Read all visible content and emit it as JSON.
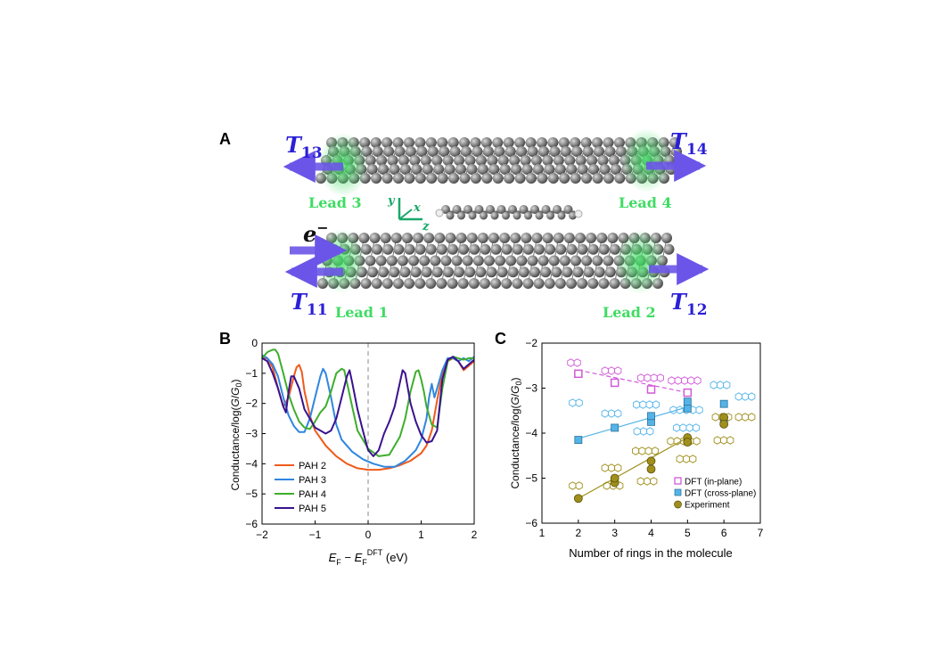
{
  "panels": {
    "a": {
      "label": "A",
      "leads": [
        "Lead 1",
        "Lead 2",
        "Lead 3",
        "Lead 4"
      ],
      "transmissions": [
        {
          "base": "T",
          "sub": "13"
        },
        {
          "base": "T",
          "sub": "14"
        },
        {
          "base": "T",
          "sub": "11"
        },
        {
          "base": "T",
          "sub": "12"
        }
      ],
      "electron": {
        "base": "e",
        "sup": "−"
      },
      "axes_labels": {
        "y": "y",
        "x": "x",
        "z": "z"
      },
      "colors": {
        "lead": "#3fdc63",
        "arrow": "#6a55e8",
        "atom": "#8a8a8a",
        "transmission_text": "#2b1fd6"
      }
    },
    "b": {
      "label": "B"
    },
    "c": {
      "label": "C"
    }
  },
  "chart_data": [
    {
      "type": "line",
      "xlabel": {
        "main": "E",
        "sub1": "F",
        "mid": " − E",
        "sub2": "F",
        "sup": "DFT",
        "unit": " (eV)"
      },
      "ylabel": "Conductance/log(G/G0)",
      "xlim": [
        -2,
        2
      ],
      "ylim": [
        -6,
        0
      ],
      "xticks": [
        "−2",
        "−1",
        "0",
        "1",
        "2"
      ],
      "yticks": [
        "0",
        "−1",
        "−2",
        "−3",
        "−4",
        "−5",
        "−6"
      ],
      "vline": 0,
      "legend_position": "bottom-left",
      "series": [
        {
          "name": "PAH 2",
          "color": "#f05a1a",
          "x": [
            -2,
            -1.9,
            -1.8,
            -1.7,
            -1.6,
            -1.5,
            -1.4,
            -1.35,
            -1.3,
            -1.25,
            -1.2,
            -1.1,
            -1.0,
            -0.8,
            -0.6,
            -0.4,
            -0.2,
            0,
            0.2,
            0.4,
            0.6,
            0.8,
            1.0,
            1.1,
            1.2,
            1.3,
            1.4,
            1.5,
            1.6,
            1.7,
            1.8,
            1.9,
            2.0
          ],
          "y": [
            -0.5,
            -0.5,
            -0.8,
            -1.5,
            -2.1,
            -1.8,
            -1.1,
            -0.8,
            -0.72,
            -0.95,
            -1.6,
            -2.4,
            -2.9,
            -3.4,
            -3.75,
            -4.0,
            -4.15,
            -4.2,
            -4.2,
            -4.15,
            -4.05,
            -3.9,
            -3.65,
            -3.4,
            -2.9,
            -1.9,
            -1.0,
            -0.6,
            -0.5,
            -0.6,
            -0.9,
            -0.75,
            -0.6
          ]
        },
        {
          "name": "PAH 3",
          "color": "#2f86e0",
          "x": [
            -2,
            -1.9,
            -1.8,
            -1.7,
            -1.6,
            -1.5,
            -1.4,
            -1.3,
            -1.2,
            -1.1,
            -1.0,
            -0.9,
            -0.85,
            -0.8,
            -0.7,
            -0.6,
            -0.5,
            -0.3,
            -0.1,
            0.1,
            0.3,
            0.5,
            0.7,
            0.9,
            1.0,
            1.1,
            1.15,
            1.2,
            1.25,
            1.3,
            1.4,
            1.5,
            1.6,
            1.7,
            1.8,
            1.9,
            2.0
          ],
          "y": [
            -0.4,
            -0.5,
            -0.7,
            -1.1,
            -1.8,
            -2.4,
            -2.75,
            -2.95,
            -2.95,
            -2.5,
            -1.8,
            -1.1,
            -0.85,
            -1.0,
            -1.8,
            -2.7,
            -3.2,
            -3.6,
            -3.85,
            -4.0,
            -4.1,
            -4.1,
            -3.9,
            -3.55,
            -3.2,
            -2.5,
            -1.8,
            -1.35,
            -1.8,
            -1.5,
            -0.9,
            -0.5,
            -0.5,
            -0.6,
            -0.5,
            -0.6,
            -0.45
          ]
        },
        {
          "name": "PAH 4",
          "color": "#3eae2c",
          "x": [
            -2,
            -1.9,
            -1.8,
            -1.75,
            -1.7,
            -1.6,
            -1.5,
            -1.4,
            -1.3,
            -1.2,
            -1.1,
            -1.0,
            -0.9,
            -0.8,
            -0.7,
            -0.6,
            -0.5,
            -0.45,
            -0.4,
            -0.3,
            -0.2,
            0,
            0.2,
            0.4,
            0.6,
            0.7,
            0.8,
            0.9,
            0.95,
            1.0,
            1.05,
            1.1,
            1.2,
            1.3,
            1.4,
            1.5,
            1.6,
            1.7,
            1.8,
            1.9,
            2.0
          ],
          "y": [
            -0.5,
            -0.3,
            -0.22,
            -0.22,
            -0.35,
            -1.0,
            -1.7,
            -2.2,
            -2.6,
            -2.8,
            -2.85,
            -2.6,
            -2.3,
            -2.1,
            -1.6,
            -1.0,
            -0.85,
            -0.9,
            -1.3,
            -2.1,
            -2.9,
            -3.5,
            -3.75,
            -3.7,
            -3.1,
            -2.5,
            -1.6,
            -0.95,
            -0.9,
            -1.2,
            -1.6,
            -2.1,
            -2.7,
            -2.8,
            -1.5,
            -0.6,
            -0.45,
            -0.5,
            -0.55,
            -0.5,
            -0.5
          ]
        },
        {
          "name": "PAH 5",
          "color": "#3a128f",
          "x": [
            -2,
            -1.9,
            -1.8,
            -1.7,
            -1.6,
            -1.55,
            -1.5,
            -1.45,
            -1.4,
            -1.3,
            -1.2,
            -1.0,
            -0.8,
            -0.7,
            -0.6,
            -0.5,
            -0.4,
            -0.35,
            -0.3,
            -0.2,
            -0.1,
            0,
            0.1,
            0.2,
            0.3,
            0.4,
            0.5,
            0.6,
            0.65,
            0.7,
            0.75,
            0.8,
            0.9,
            1.0,
            1.1,
            1.2,
            1.3,
            1.4,
            1.5,
            1.6,
            1.7,
            1.8,
            1.9,
            2.0
          ],
          "y": [
            -0.5,
            -0.6,
            -1.0,
            -1.5,
            -2.1,
            -2.3,
            -1.6,
            -1.1,
            -1.1,
            -1.5,
            -2.2,
            -2.8,
            -3.0,
            -2.9,
            -2.5,
            -1.8,
            -1.1,
            -0.9,
            -1.3,
            -2.2,
            -2.9,
            -3.55,
            -3.75,
            -3.55,
            -3.0,
            -2.6,
            -2.1,
            -1.3,
            -0.9,
            -1.0,
            -1.5,
            -2.0,
            -2.6,
            -3.05,
            -3.3,
            -3.25,
            -2.9,
            -1.2,
            -0.55,
            -0.45,
            -0.6,
            -0.85,
            -0.7,
            -0.55
          ]
        }
      ]
    },
    {
      "type": "scatter",
      "xlabel": "Number of rings in the molecule",
      "ylabel": "Conductance/log(G/G0)",
      "xlim": [
        1,
        7
      ],
      "ylim": [
        -6,
        -2
      ],
      "xticks": [
        "1",
        "2",
        "3",
        "4",
        "5",
        "6",
        "7"
      ],
      "yticks": [
        "−2",
        "−3",
        "−4",
        "−5",
        "−6"
      ],
      "legend_position": "bottom-right",
      "series": [
        {
          "name": "DFT (in-plane)",
          "color": "#d15ad8",
          "marker": "open-square",
          "line": "dashed",
          "x": [
            2,
            3,
            4,
            5
          ],
          "y": [
            -2.68,
            -2.88,
            -3.03,
            -3.1
          ]
        },
        {
          "name": "DFT (cross-plane)",
          "color": "#54b4e8",
          "marker": "filled-square",
          "line": "solid",
          "x": [
            2,
            3,
            4,
            4,
            5,
            5,
            6,
            6
          ],
          "y": [
            -4.15,
            -3.88,
            -3.75,
            -3.62,
            -3.45,
            -3.3,
            -3.7,
            -3.35
          ]
        },
        {
          "name": "Experiment",
          "color": "#a08f1b",
          "marker": "filled-circle",
          "line": "solid",
          "x": [
            2,
            3,
            3,
            4,
            4,
            5,
            5,
            6,
            6
          ],
          "y": [
            -5.45,
            -5.1,
            -5.0,
            -4.62,
            -4.8,
            -4.1,
            -4.2,
            -3.65,
            -3.8
          ]
        }
      ],
      "fit_lines": [
        {
          "series": 1,
          "x": [
            2,
            5
          ],
          "y": [
            -4.12,
            -3.42
          ]
        },
        {
          "series": 2,
          "x": [
            2,
            5
          ],
          "y": [
            -5.45,
            -4.1
          ]
        },
        {
          "series": 0,
          "x": [
            2,
            5
          ],
          "y": [
            -2.6,
            -3.1
          ]
        }
      ]
    }
  ]
}
